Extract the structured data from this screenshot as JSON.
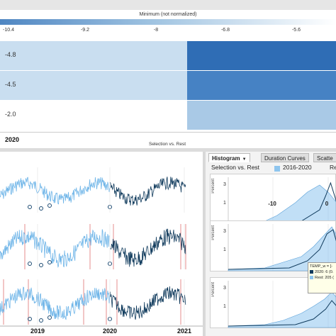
{
  "legend": {
    "title": "Minimum (not normalized)",
    "ticks": [
      {
        "label": "-10.4",
        "x": 12
      },
      {
        "label": "-9.2",
        "x": 120
      },
      {
        "label": "-8",
        "x": 220
      },
      {
        "label": "-6.8",
        "x": 318
      },
      {
        "label": "-5.6",
        "x": 418
      }
    ]
  },
  "heatmap": {
    "rows": [
      {
        "label": "-4.8",
        "left_color": "#c9def0",
        "right_color": "#2f6db5"
      },
      {
        "label": "-4.5",
        "left_color": "#c9def0",
        "right_color": "#4682c4"
      },
      {
        "label": "-2.0",
        "left_color": "#ffffff",
        "right_color": "#a9c9e6"
      }
    ],
    "year": "2020",
    "caption": "Selection vs. Rest"
  },
  "timeseries": {
    "x_ticks": [
      "2019",
      "2020",
      "2021"
    ],
    "color_selected": "#0f3a5c",
    "color_rest": "#6fb5e8",
    "color_marker": "#e07070"
  },
  "histogram": {
    "tabs": {
      "histogram": "Histogram",
      "duration": "Duration Curves",
      "scatter": "Scatte"
    },
    "legend_prefix": "Selection vs. Rest",
    "legend_series": "2016-2020",
    "legend_rest": "Re",
    "y_axis_label": "Percent",
    "panel_y_ticks": [
      "3",
      "1"
    ],
    "x_ticks": [
      "-10",
      "0"
    ],
    "tooltip": {
      "line1": "TEMP_w = [-",
      "line2": "2020: 6 (0.",
      "line3": "Rest: 205 ("
    }
  }
}
